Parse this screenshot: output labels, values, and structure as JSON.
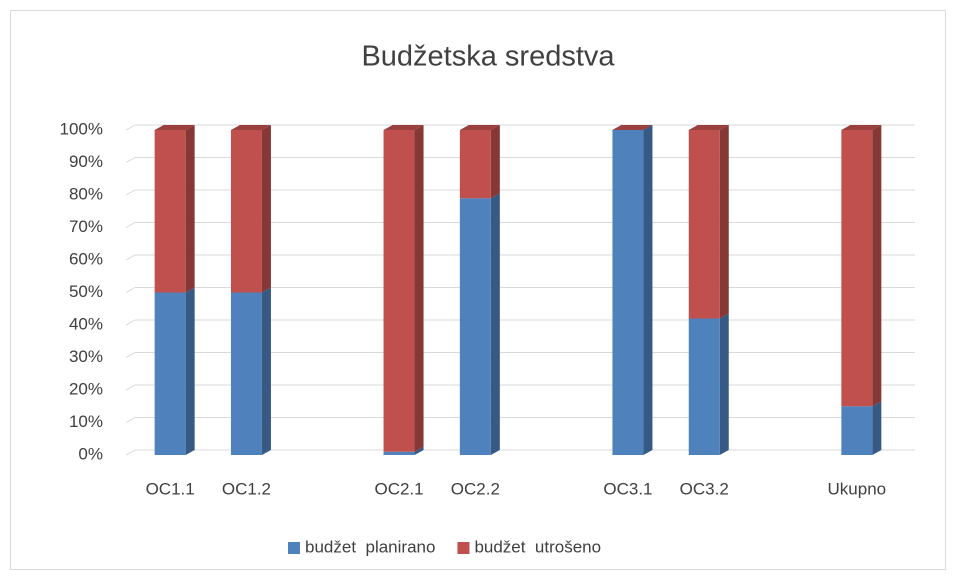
{
  "chart_data": {
    "type": "bar",
    "stacked": true,
    "three_d": true,
    "title": "Budžetska sredstva",
    "categories": [
      "OC1.1",
      "OC1.2",
      null,
      "OC2.1",
      "OC2.2",
      null,
      "OC3.1",
      "OC3.2",
      null,
      "Ukupno"
    ],
    "series": [
      {
        "name": "budžet  planirano",
        "color": "#4f81bd",
        "values": [
          50,
          50,
          null,
          1,
          79,
          null,
          100,
          42,
          null,
          15
        ]
      },
      {
        "name": "budžet  utrošeno",
        "color": "#c0504d",
        "values": [
          50,
          50,
          null,
          99,
          21,
          null,
          0,
          58,
          null,
          85
        ]
      }
    ],
    "ylim": [
      0,
      100
    ],
    "yticks": [
      {
        "value": 0,
        "label": "0%"
      },
      {
        "value": 10,
        "label": "10%"
      },
      {
        "value": 20,
        "label": "20%"
      },
      {
        "value": 30,
        "label": "30%"
      },
      {
        "value": 40,
        "label": "40%"
      },
      {
        "value": 50,
        "label": "50%"
      },
      {
        "value": 60,
        "label": "60%"
      },
      {
        "value": 70,
        "label": "70%"
      },
      {
        "value": 80,
        "label": "80%"
      },
      {
        "value": 90,
        "label": "90%"
      },
      {
        "value": 100,
        "label": "100%"
      }
    ],
    "grid": true,
    "legend": "bottom"
  }
}
